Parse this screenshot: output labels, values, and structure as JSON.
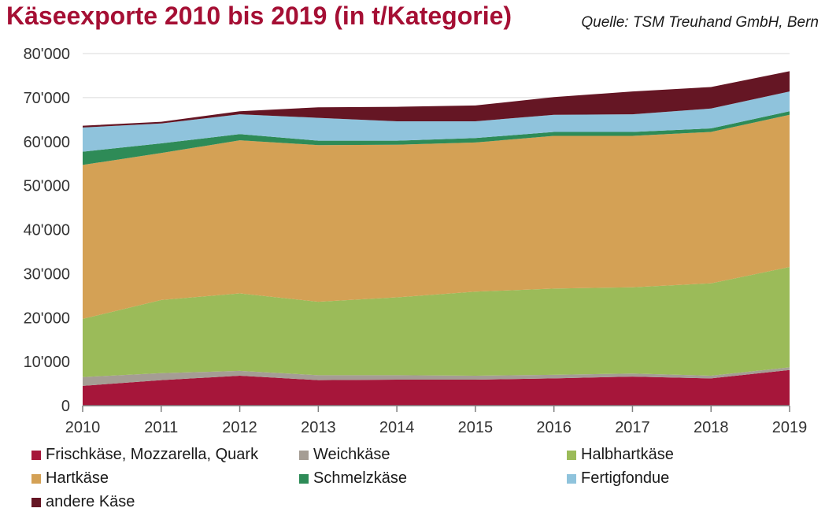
{
  "title": "Käseexporte 2010 bis 2019 (in t/Kategorie)",
  "source": "Quelle: TSM Treuhand GmbH, Bern",
  "chart_data": {
    "type": "area",
    "stacked": true,
    "x": [
      "2010",
      "2011",
      "2012",
      "2013",
      "2014",
      "2015",
      "2016",
      "2017",
      "2018",
      "2019"
    ],
    "ylim": [
      0,
      80000
    ],
    "yticks": [
      {
        "value": 0,
        "label": "0"
      },
      {
        "value": 10000,
        "label": "10'000"
      },
      {
        "value": 20000,
        "label": "20'000"
      },
      {
        "value": 30000,
        "label": "30'000"
      },
      {
        "value": 40000,
        "label": "40'000"
      },
      {
        "value": 50000,
        "label": "50'000"
      },
      {
        "value": 60000,
        "label": "60'000"
      },
      {
        "value": 70000,
        "label": "70'000"
      },
      {
        "value": 80000,
        "label": "80'000"
      }
    ],
    "grid": true,
    "legend_position": "bottom",
    "series": [
      {
        "name": "Frischkäse, Mozzarella, Quark",
        "color": "#a6163a",
        "values": [
          4500,
          5800,
          6800,
          5800,
          5900,
          5900,
          6200,
          6600,
          6200,
          8100
        ]
      },
      {
        "name": "Weichkäse",
        "color": "#a59d94",
        "values": [
          2000,
          1600,
          1100,
          1100,
          1000,
          900,
          800,
          700,
          600,
          600
        ]
      },
      {
        "name": "Halbhartkäse",
        "color": "#9bbb59",
        "values": [
          13200,
          16600,
          17600,
          16700,
          17700,
          19100,
          19600,
          19600,
          21000,
          22800
        ]
      },
      {
        "name": "Hartkäse",
        "color": "#d4a155",
        "values": [
          35000,
          33400,
          34800,
          35600,
          34700,
          33900,
          34700,
          34400,
          34400,
          34600
        ]
      },
      {
        "name": "Schmelzkäse",
        "color": "#2e8b57",
        "values": [
          3000,
          2200,
          1400,
          1000,
          900,
          1000,
          900,
          900,
          800,
          800
        ]
      },
      {
        "name": "Fertigfondue",
        "color": "#8fc3dc",
        "values": [
          5500,
          4500,
          4500,
          5200,
          4400,
          3800,
          3900,
          4000,
          4500,
          4500
        ]
      },
      {
        "name": "andere Käse",
        "color": "#651624",
        "values": [
          400,
          400,
          700,
          2400,
          3300,
          3600,
          4000,
          5200,
          4900,
          4600
        ]
      }
    ]
  }
}
